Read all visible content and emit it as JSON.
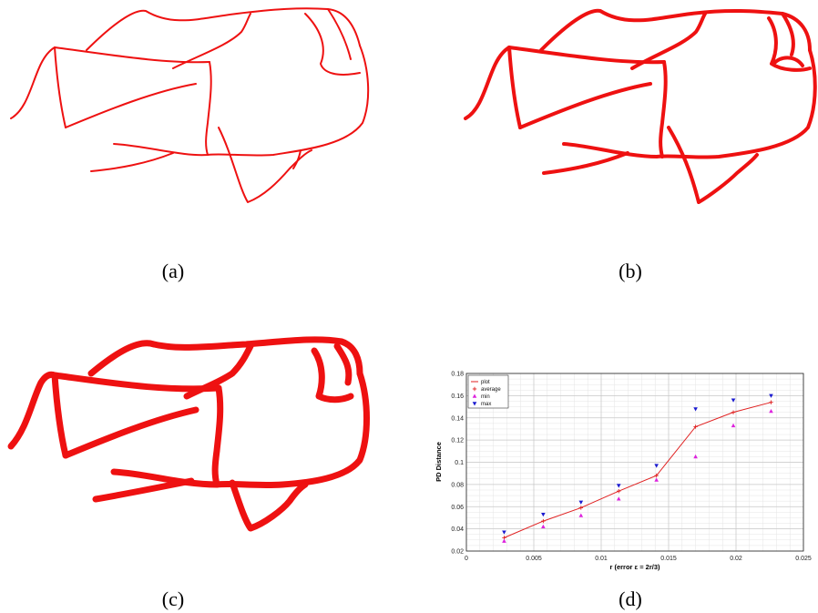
{
  "captions": {
    "a": "(a)",
    "b": "(b)",
    "c": "(c)",
    "d": "(d)"
  },
  "colors": {
    "network": "#ee1111",
    "average": "#e02020",
    "min": "#dd22dd",
    "max": "#1a1ad0"
  },
  "chart_data": {
    "type": "line",
    "xlabel": "r (error ε = 2r/3)",
    "ylabel": "PD Distance",
    "xlim": [
      0,
      0.025
    ],
    "ylim": [
      0.02,
      0.18
    ],
    "x_ticks": [
      "0",
      "0.005",
      "0.01",
      "0.015",
      "0.02",
      "0.025"
    ],
    "y_ticks": [
      "0.02",
      "0.04",
      "0.06",
      "0.08",
      "0.1",
      "0.12",
      "0.14",
      "0.16",
      "0.18"
    ],
    "grid": true,
    "legend_placement": "top-left",
    "x": [
      0.0028,
      0.0057,
      0.0085,
      0.0113,
      0.0141,
      0.017,
      0.0198,
      0.0226
    ],
    "series": [
      {
        "name": "plot",
        "marker": "line",
        "values": [
          0.032,
          0.047,
          0.059,
          0.074,
          0.088,
          0.132,
          0.145,
          0.154
        ]
      },
      {
        "name": "average",
        "marker": "plus",
        "values": [
          0.032,
          0.047,
          0.059,
          0.074,
          0.088,
          0.132,
          0.145,
          0.154
        ]
      },
      {
        "name": "min",
        "marker": "triangle-up",
        "values": [
          0.029,
          0.042,
          0.052,
          0.067,
          0.084,
          0.105,
          0.133,
          0.146
        ]
      },
      {
        "name": "max",
        "marker": "triangle-down",
        "values": [
          0.037,
          0.053,
          0.064,
          0.079,
          0.097,
          0.148,
          0.156,
          0.16
        ]
      }
    ]
  }
}
